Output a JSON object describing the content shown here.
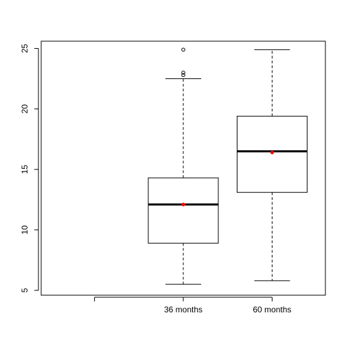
{
  "chart_data": {
    "type": "boxplot",
    "title": "",
    "xlabel": "",
    "ylabel": "",
    "categories": [
      "",
      "36 months",
      "60 months"
    ],
    "ylim": [
      4.6,
      25.6
    ],
    "y_ticks": [
      5,
      10,
      15,
      20,
      25
    ],
    "grid": false,
    "legend": "none",
    "mean_color": "#ff0000",
    "boxes": [
      {
        "category": "",
        "empty": true
      },
      {
        "category": "36 months",
        "whisker_low": 5.5,
        "q1": 8.9,
        "median": 12.1,
        "q3": 14.3,
        "whisker_high": 22.5,
        "mean": 12.1,
        "outliers": [
          22.8,
          23.0,
          24.9
        ]
      },
      {
        "category": "60 months",
        "whisker_low": 5.8,
        "q1": 13.1,
        "median": 16.5,
        "q3": 19.4,
        "whisker_high": 24.9,
        "mean": 16.4,
        "outliers": []
      }
    ]
  }
}
